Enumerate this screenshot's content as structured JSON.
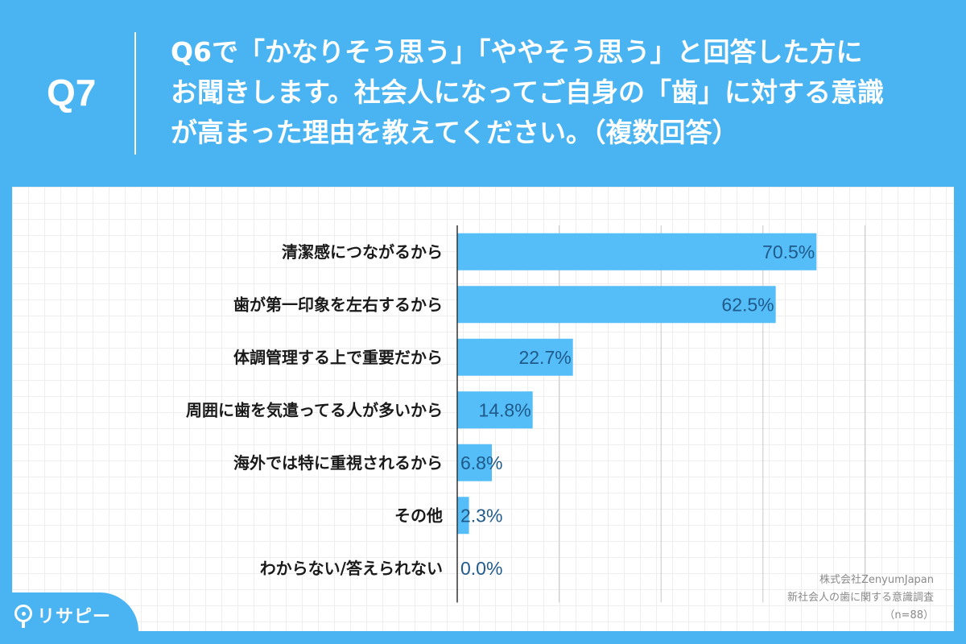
{
  "header": {
    "qnum": "Q7",
    "question": "Q6で「かなりそう思う」「ややそう思う」と回答した方に\nお聞きします。社会人になってご自身の「歯」に対する意識\nが高まった理由を教えてください。（複数回答）"
  },
  "credit": {
    "line1": "株式会社ZenyumJapan",
    "line2": "新社会人の歯に関する意識調査",
    "line3": "（n=88）"
  },
  "logo": {
    "text": "リサピー",
    "icon": "location-pin-icon"
  },
  "colors": {
    "background": "#4ab4f2",
    "bar": "#55bdf7",
    "value_text": "#1f5a8a"
  },
  "chart_data": {
    "type": "bar",
    "orientation": "horizontal",
    "categories": [
      "清潔感につながるから",
      "歯が第一印象を左右するから",
      "体調管理する上で重要だから",
      "周囲に歯を気遣ってる人が多いから",
      "海外では特に重視されるから",
      "その他",
      "わからない/答えられない"
    ],
    "values": [
      70.5,
      62.5,
      22.7,
      14.8,
      6.8,
      2.3,
      0.0
    ],
    "value_labels": [
      "70.5%",
      "62.5%",
      "22.7%",
      "14.8%",
      "6.8%",
      "2.3%",
      "0.0%"
    ],
    "xlim": [
      0,
      100
    ],
    "grid": true
  }
}
